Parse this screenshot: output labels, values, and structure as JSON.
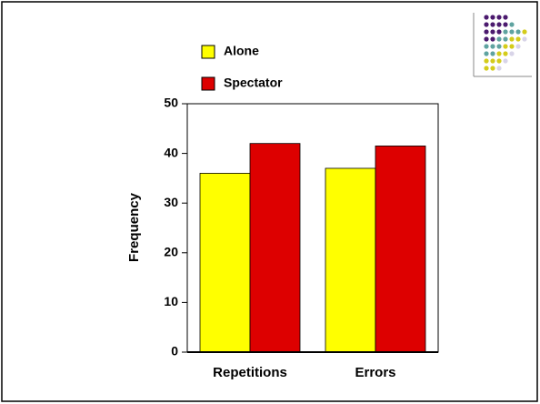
{
  "chart_data": {
    "type": "bar",
    "categories": [
      "Repetitions",
      "Errors"
    ],
    "series": [
      {
        "name": "Alone",
        "color": "#ffff00",
        "values": [
          36,
          37
        ]
      },
      {
        "name": "Spectator",
        "color": "#dd0000",
        "values": [
          42,
          41.5
        ]
      }
    ],
    "ylabel": "Frequency",
    "ylim": [
      0,
      50
    ],
    "yticks": [
      0,
      10,
      20,
      30,
      40,
      50
    ],
    "legend": "top"
  }
}
